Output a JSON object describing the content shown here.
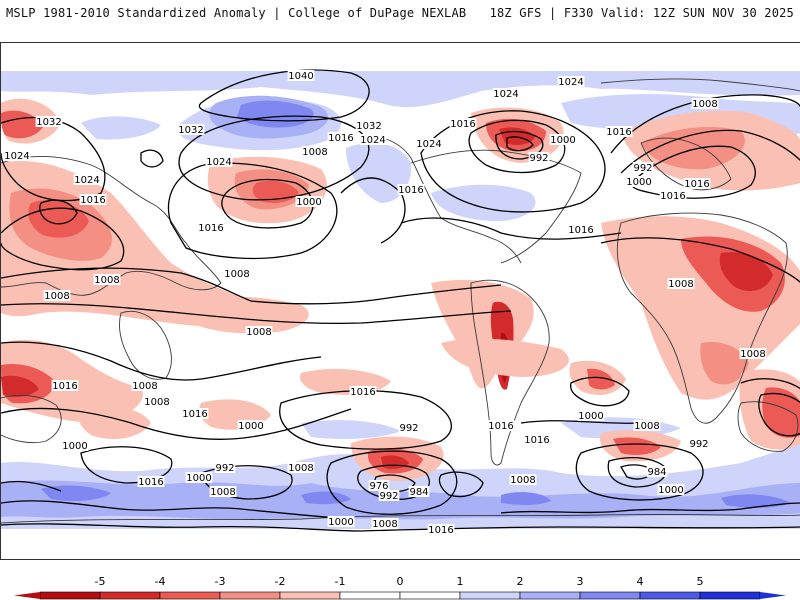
{
  "header": {
    "left": "MSLP 1981-2010 Standardized Anomaly | College of DuPage NEXLAB",
    "right": "18Z GFS | F330 Valid: 12Z SUN NOV 30 2025"
  },
  "colors": {
    "neg5": "#b40e14",
    "neg4": "#d32b2b",
    "neg3": "#ec5a55",
    "neg2": "#f48f84",
    "neg1": "#fac0b4",
    "zero": "#ffffff",
    "pos1": "#cfd4fb",
    "pos2": "#a8b0f6",
    "pos3": "#7f87f0",
    "pos4": "#4d5ae8",
    "pos5": "#1f30d8",
    "land": "#3a3a3a"
  },
  "isobars": [
    {
      "id": "1040",
      "label": "1040"
    },
    {
      "id": "1032a",
      "label": "1032"
    },
    {
      "id": "1032b",
      "label": "1032"
    },
    {
      "id": "1032c",
      "label": "1032"
    },
    {
      "id": "1024a",
      "label": "1024"
    },
    {
      "id": "1024b",
      "label": "1024"
    },
    {
      "id": "1024c",
      "label": "1024"
    },
    {
      "id": "1024d",
      "label": "1024"
    },
    {
      "id": "1024e",
      "label": "1024"
    },
    {
      "id": "1024f",
      "label": "1024"
    },
    {
      "id": "1024g",
      "label": "1024"
    },
    {
      "id": "1016a",
      "label": "1016"
    },
    {
      "id": "1016b",
      "label": "1016"
    },
    {
      "id": "1016c",
      "label": "1016"
    },
    {
      "id": "1016d",
      "label": "1016"
    },
    {
      "id": "1016e",
      "label": "1016"
    },
    {
      "id": "1016f",
      "label": "1016"
    },
    {
      "id": "1016g",
      "label": "1016"
    },
    {
      "id": "1016h",
      "label": "1016"
    },
    {
      "id": "1016i",
      "label": "1016"
    },
    {
      "id": "1016j",
      "label": "1016"
    },
    {
      "id": "1016k",
      "label": "1016"
    },
    {
      "id": "1016l",
      "label": "1016"
    },
    {
      "id": "1016m",
      "label": "1016"
    },
    {
      "id": "1016n",
      "label": "1016"
    },
    {
      "id": "1016o",
      "label": "1016"
    },
    {
      "id": "1016p",
      "label": "1016"
    },
    {
      "id": "1008a",
      "label": "1008"
    },
    {
      "id": "1008b",
      "label": "1008"
    },
    {
      "id": "1008c",
      "label": "1008"
    },
    {
      "id": "1008d",
      "label": "1008"
    },
    {
      "id": "1008e",
      "label": "1008"
    },
    {
      "id": "1008f",
      "label": "1008"
    },
    {
      "id": "1008g",
      "label": "1008"
    },
    {
      "id": "1008h",
      "label": "1008"
    },
    {
      "id": "1008i",
      "label": "1008"
    },
    {
      "id": "1008j",
      "label": "1008"
    },
    {
      "id": "1008k",
      "label": "1008"
    },
    {
      "id": "1008l",
      "label": "1008"
    },
    {
      "id": "1008m",
      "label": "1008"
    },
    {
      "id": "1008n",
      "label": "1008"
    },
    {
      "id": "1008o",
      "label": "1008"
    },
    {
      "id": "1000a",
      "label": "1000"
    },
    {
      "id": "1000b",
      "label": "1000"
    },
    {
      "id": "1000c",
      "label": "1000"
    },
    {
      "id": "1000d",
      "label": "1000"
    },
    {
      "id": "1000e",
      "label": "1000"
    },
    {
      "id": "1000f",
      "label": "1000"
    },
    {
      "id": "1000g",
      "label": "1000"
    },
    {
      "id": "1000h",
      "label": "1000"
    },
    {
      "id": "1000i",
      "label": "1000"
    },
    {
      "id": "992a",
      "label": "992"
    },
    {
      "id": "992b",
      "label": "992"
    },
    {
      "id": "992c",
      "label": "992"
    },
    {
      "id": "992d",
      "label": "992"
    },
    {
      "id": "992e",
      "label": "992"
    },
    {
      "id": "992f",
      "label": "992"
    },
    {
      "id": "984a",
      "label": "984"
    },
    {
      "id": "984b",
      "label": "984"
    },
    {
      "id": "976a",
      "label": "976"
    }
  ],
  "colorbar": {
    "ticks": [
      "-5",
      "-4",
      "-3",
      "-2",
      "-1",
      "0",
      "1",
      "2",
      "3",
      "4",
      "5"
    ]
  }
}
